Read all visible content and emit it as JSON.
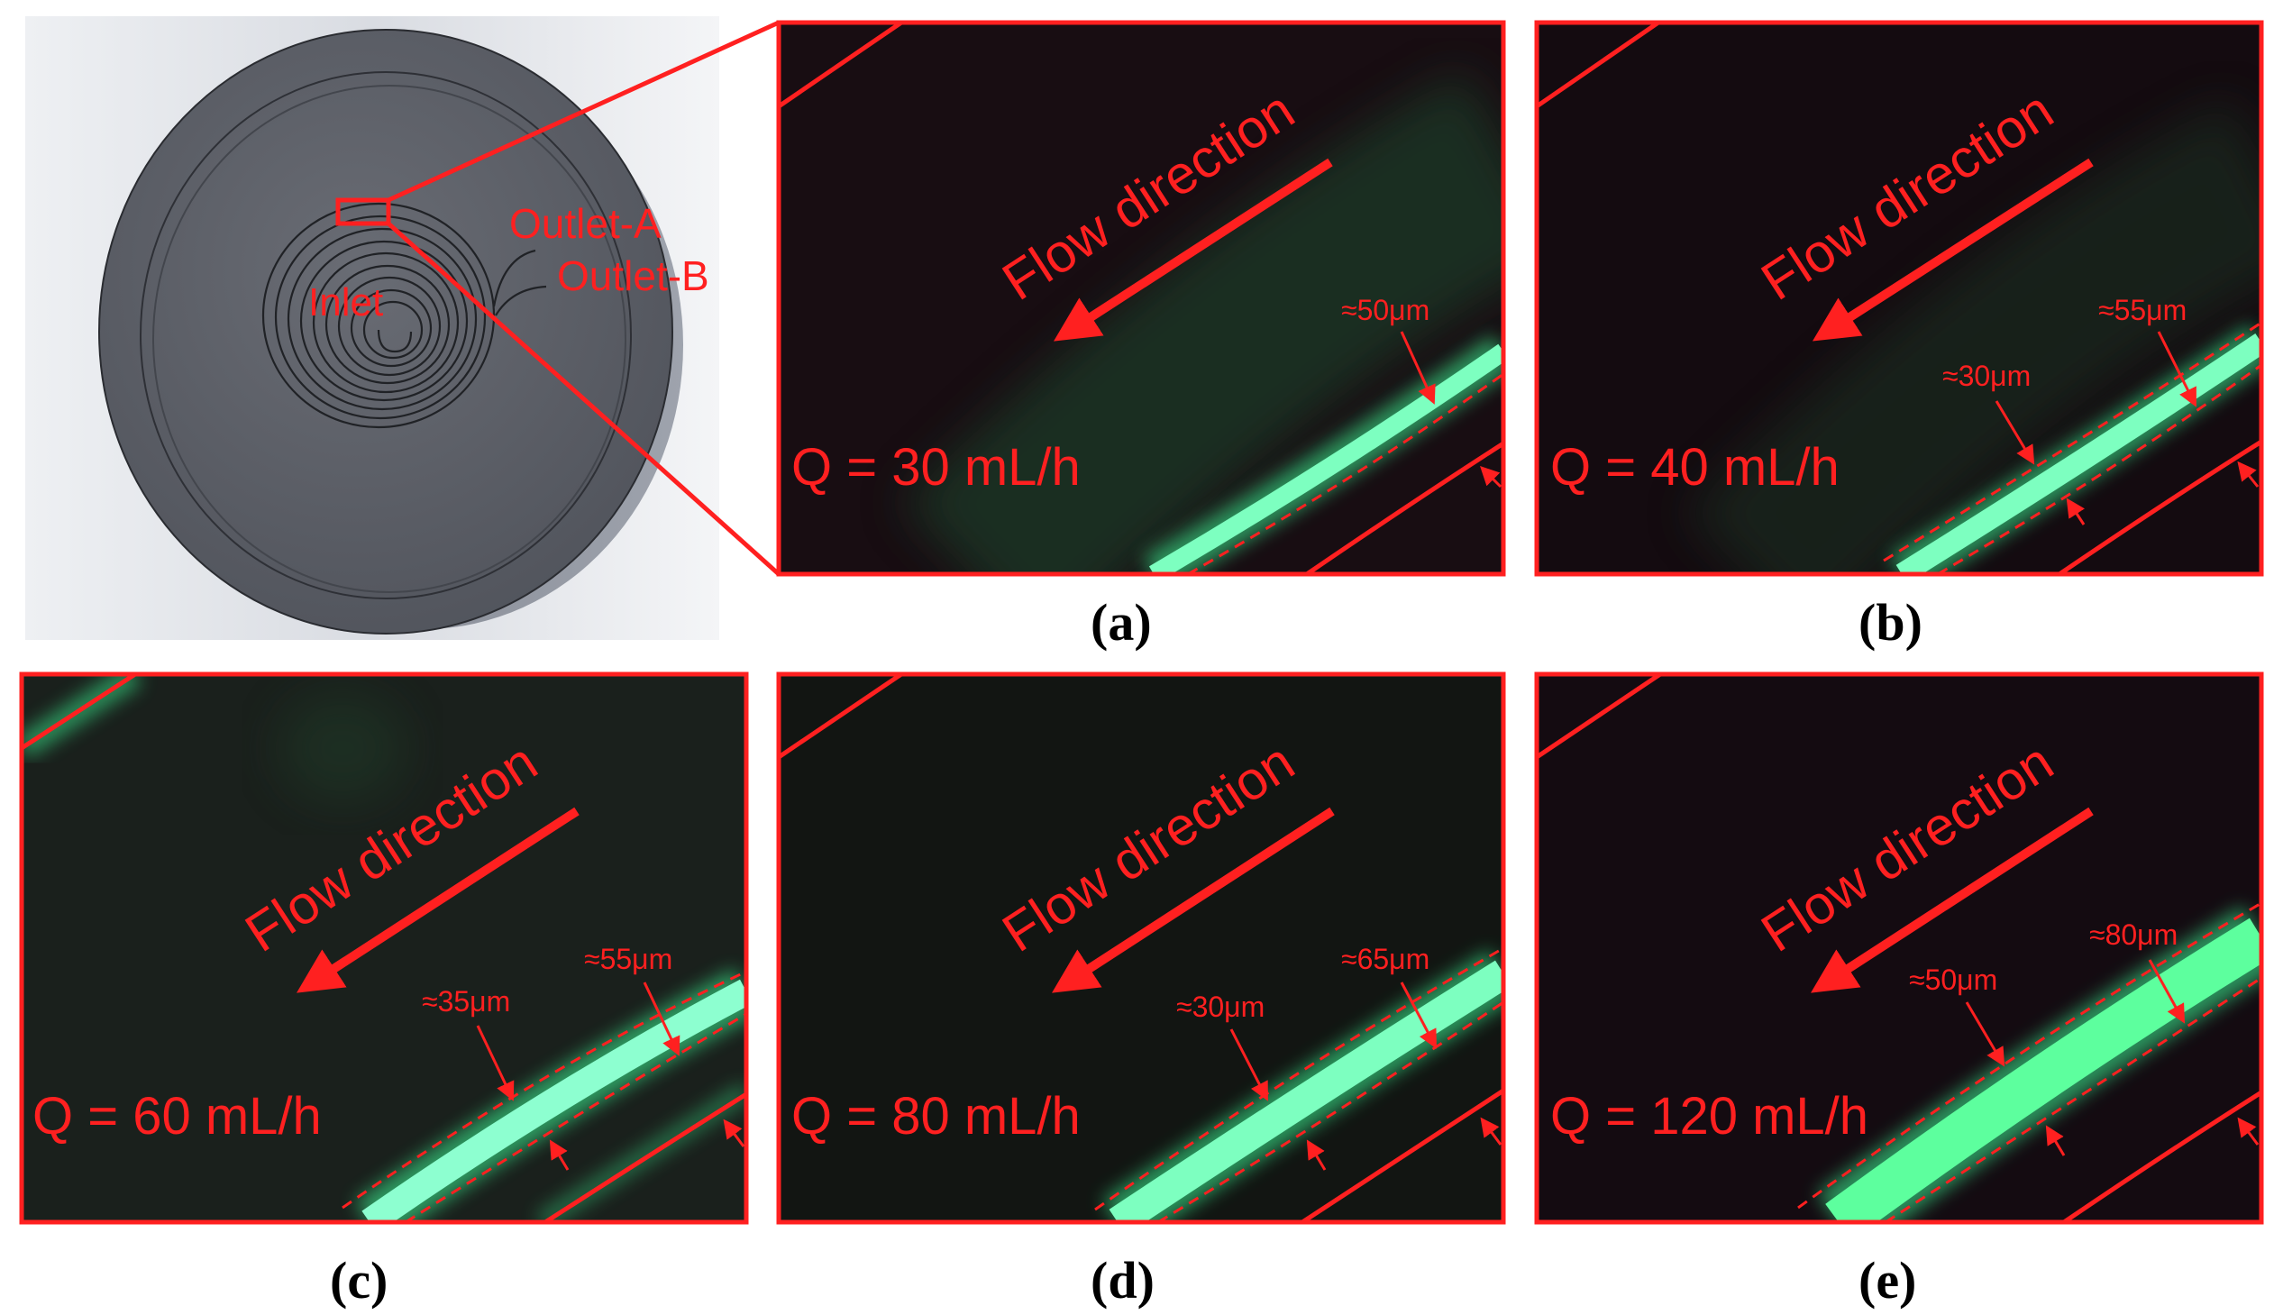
{
  "device": {
    "inlet_label": "Inlet",
    "outlet_a_label": "Outlet-A",
    "outlet_b_label": "Outlet-B"
  },
  "panels": [
    {
      "id": "a",
      "caption": "(a)",
      "flow_label": "Flow direction",
      "q_label": "Q = 30 mL/h",
      "widths": [
        "≈50μm"
      ]
    },
    {
      "id": "b",
      "caption": "(b)",
      "flow_label": "Flow direction",
      "q_label": "Q = 40 mL/h",
      "widths": [
        "≈55μm",
        "≈30μm"
      ]
    },
    {
      "id": "c",
      "caption": "(c)",
      "flow_label": "Flow direction",
      "q_label": "Q = 60 mL/h",
      "widths": [
        "≈55μm",
        "≈35μm"
      ]
    },
    {
      "id": "d",
      "caption": "(d)",
      "flow_label": "Flow direction",
      "q_label": "Q = 80 mL/h",
      "widths": [
        "≈65μm",
        "≈30μm"
      ]
    },
    {
      "id": "e",
      "caption": "(e)",
      "flow_label": "Flow direction",
      "q_label": "Q = 120 mL/h",
      "widths": [
        "≈80μm",
        "≈50μm"
      ]
    }
  ],
  "colors": {
    "annotation": "#ff2020",
    "stream": "#3dff9a",
    "device_body": "#5d6068"
  }
}
